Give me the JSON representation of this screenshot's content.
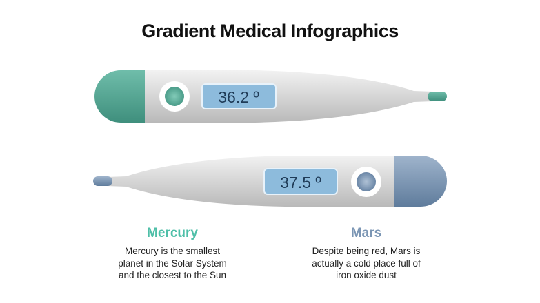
{
  "title": "Gradient Medical Infographics",
  "thermometers": [
    {
      "reading": "36.2 º",
      "color": "#5aae9c"
    },
    {
      "reading": "37.5 º",
      "color": "#7b96b4"
    }
  ],
  "items": [
    {
      "title": "Mercury",
      "text": "Mercury is the smallest planet in the Solar System and the closest to the Sun",
      "color": "#4fbfa8"
    },
    {
      "title": "Mars",
      "text": "Despite being red, Mars is actually a cold place full of iron oxide dust",
      "color": "#7b96b4"
    }
  ]
}
